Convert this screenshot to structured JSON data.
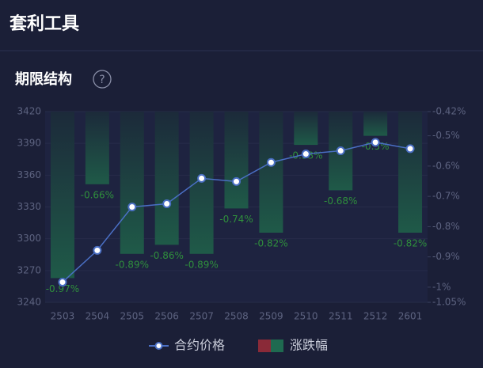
{
  "header": {
    "title": "套利工具",
    "section": "期限结构",
    "help": "?"
  },
  "chart_data": {
    "type": "combo",
    "categories": [
      "2503",
      "2504",
      "2505",
      "2506",
      "2507",
      "2508",
      "2509",
      "2510",
      "2511",
      "2512",
      "2601"
    ],
    "series": [
      {
        "name": "合约价格",
        "type": "line",
        "color": "#4a6fc4",
        "values": [
          3259,
          3289,
          3330,
          3333,
          3357,
          3354,
          3372,
          3380,
          3383,
          3391,
          3385
        ]
      },
      {
        "name": "涨跌幅",
        "type": "bar",
        "axis": "y2",
        "color": "#1f6a50",
        "up_color": "#8a2a38",
        "label_color": "#2f8f3c",
        "values": [
          -0.97,
          -0.66,
          -0.89,
          -0.86,
          -0.89,
          -0.74,
          -0.82,
          -0.53,
          -0.68,
          -0.5,
          -0.82
        ],
        "value_labels": [
          "-0.97%",
          "-0.66%",
          "-0.89%",
          "-0.86%",
          "-0.89%",
          "-0.74%",
          "-0.82%",
          "-0.53%",
          "-0.68%",
          "-0.5%",
          "-0.82%"
        ]
      }
    ],
    "ylim": [
      3240,
      3420
    ],
    "yticks": [
      3240,
      3270,
      3300,
      3330,
      3360,
      3390,
      3420
    ],
    "y2lim": [
      -1.05,
      -0.42
    ],
    "y2ticks": [
      {
        "value": -0.42,
        "label": "-0.42%"
      },
      {
        "value": -0.5,
        "label": "-0.5%"
      },
      {
        "value": -0.6,
        "label": "-0.6%"
      },
      {
        "value": -0.7,
        "label": "-0.7%"
      },
      {
        "value": -0.8,
        "label": "-0.8%"
      },
      {
        "value": -0.9,
        "label": "-0.9%"
      },
      {
        "value": -1,
        "label": "-1%"
      },
      {
        "value": -1.05,
        "label": "-1.05%"
      }
    ],
    "grid": true
  }
}
